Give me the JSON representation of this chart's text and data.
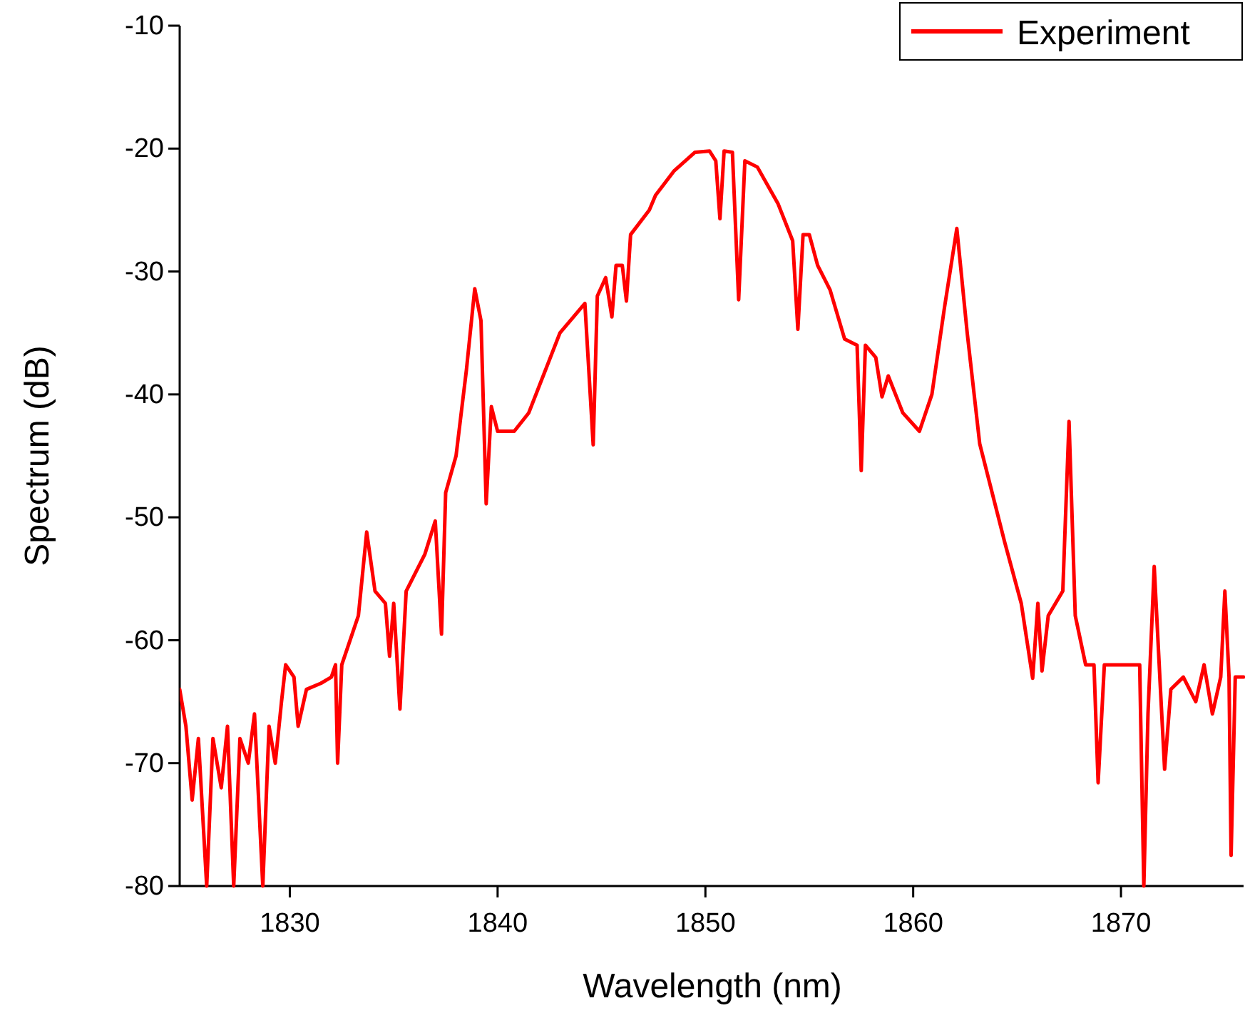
{
  "chart_data": {
    "type": "line",
    "xlabel": "Wavelength (nm)",
    "ylabel": "Spectrum (dB)",
    "xlim": [
      1824.7,
      1875.9
    ],
    "ylim": [
      -80,
      -10
    ],
    "xticks": [
      1830,
      1840,
      1850,
      1860,
      1870
    ],
    "yticks": [
      -80,
      -70,
      -60,
      -50,
      -40,
      -30,
      -20,
      -10
    ],
    "grid": false,
    "legend": "top right",
    "line_style": "solid",
    "marker": "none",
    "series": [
      {
        "name": "Experiment",
        "color": "#ff0000",
        "x": [
          1824.7,
          1825,
          1825.3,
          1825.6,
          1826,
          1826.3,
          1826.7,
          1827,
          1827.3,
          1827.6,
          1828,
          1828.3,
          1828.7,
          1829,
          1829.3,
          1829.6,
          1829.8,
          1830.2,
          1830.4,
          1830.8,
          1831.5,
          1832,
          1832.2,
          1832.3,
          1832.5,
          1833.3,
          1833.7,
          1834.1,
          1834.6,
          1834.8,
          1835,
          1835.3,
          1835.6,
          1836.5,
          1837,
          1837.3,
          1837.5,
          1838,
          1838.5,
          1838.9,
          1839.2,
          1839.45,
          1839.7,
          1840,
          1840.8,
          1841.5,
          1843,
          1844.2,
          1844.6,
          1844.8,
          1845.2,
          1845.5,
          1845.7,
          1846,
          1846.2,
          1846.4,
          1847.3,
          1847.6,
          1848.5,
          1849.5,
          1850.2,
          1850.5,
          1850.7,
          1850.9,
          1851.3,
          1851.6,
          1851.9,
          1852.5,
          1853.5,
          1854.2,
          1854.45,
          1854.7,
          1855,
          1855.4,
          1856,
          1856.7,
          1857.3,
          1857.5,
          1857.7,
          1858.2,
          1858.5,
          1858.8,
          1859.5,
          1860.3,
          1860.9,
          1861.5,
          1862.1,
          1862.6,
          1863.2,
          1864.4,
          1865.2,
          1865.75,
          1866,
          1866.2,
          1866.5,
          1867.2,
          1867.5,
          1867.8,
          1868.3,
          1868.7,
          1868.9,
          1869.2,
          1870.3,
          1870.9,
          1871.1,
          1871.3,
          1871.6,
          1871.9,
          1872.1,
          1872.4,
          1873,
          1873.6,
          1874,
          1874.4,
          1874.8,
          1875,
          1875.2,
          1875.3,
          1875.5,
          1875.9
        ],
        "values": [
          -64,
          -67,
          -73,
          -68,
          -80,
          -68,
          -72,
          -67,
          -80,
          -68,
          -70,
          -66,
          -80,
          -67,
          -70,
          -65,
          -62,
          -63,
          -67,
          -64,
          -63.5,
          -63,
          -62,
          -70,
          -62,
          -58,
          -51.2,
          -56,
          -57,
          -61.3,
          -57,
          -65.6,
          -56,
          -53,
          -50.3,
          -59.5,
          -48,
          -45,
          -38,
          -31.4,
          -34,
          -48.9,
          -41,
          -43,
          -43,
          -41.5,
          -35,
          -32.6,
          -44.1,
          -32,
          -30.5,
          -33.7,
          -29.5,
          -29.5,
          -32.4,
          -27,
          -25,
          -23.8,
          -21.8,
          -20.3,
          -20.2,
          -21,
          -25.7,
          -20.2,
          -20.3,
          -32.3,
          -21,
          -21.5,
          -24.5,
          -27.5,
          -34.7,
          -27,
          -27,
          -29.5,
          -31.5,
          -35.5,
          -36,
          -46.2,
          -36,
          -37,
          -40.2,
          -38.5,
          -41.5,
          -43,
          -40,
          -33,
          -26.5,
          -35,
          -44,
          -52,
          -57,
          -63.1,
          -57,
          -62.5,
          -58,
          -56,
          -42.2,
          -58,
          -62,
          -62,
          -71.6,
          -62,
          -62,
          -62,
          -80,
          -66,
          -54,
          -64,
          -70.5,
          -64,
          -63,
          -65,
          -62,
          -66,
          -63,
          -56,
          -63,
          -77.5,
          -63,
          -63
        ]
      }
    ]
  }
}
